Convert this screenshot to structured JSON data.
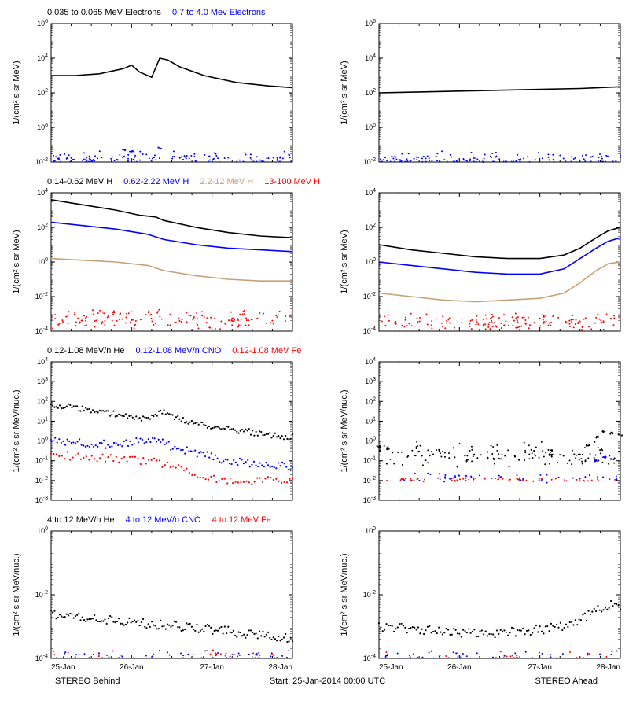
{
  "footer": {
    "left": "STEREO Behind",
    "center": "Start: 25-Jan-2014 00:00 UTC",
    "right": "STEREO Ahead"
  },
  "xaxis": {
    "ticks": [
      "25-Jan",
      "26-Jan",
      "27-Jan",
      "28-Jan"
    ],
    "domain": [
      0,
      3
    ]
  },
  "colors": {
    "black": "#000000",
    "blue": "#0000ff",
    "tan": "#c8a078",
    "red": "#ff0000",
    "axis": "#000000",
    "bg": "#ffffff"
  },
  "font": {
    "axis_label": 11,
    "tick": 9,
    "legend": 11
  },
  "rows": [
    {
      "legend": [
        {
          "text": "0.035 to 0.065 MeV Electrons",
          "color": "black"
        },
        {
          "text": "0.7 to 4.0 Mev Electrons",
          "color": "blue"
        }
      ],
      "ylabel": "1/(cm² s sr MeV)",
      "yexp": [
        -2,
        0,
        2,
        4,
        6
      ],
      "left": {
        "series": [
          {
            "color": "black",
            "kind": "line",
            "data": [
              [
                0,
                3.0
              ],
              [
                0.3,
                3.0
              ],
              [
                0.6,
                3.1
              ],
              [
                0.9,
                3.4
              ],
              [
                1.0,
                3.6
              ],
              [
                1.1,
                3.2
              ],
              [
                1.25,
                2.9
              ],
              [
                1.35,
                4.0
              ],
              [
                1.45,
                3.9
              ],
              [
                1.6,
                3.5
              ],
              [
                1.9,
                3.0
              ],
              [
                2.3,
                2.6
              ],
              [
                2.7,
                2.4
              ],
              [
                3.0,
                2.3
              ]
            ]
          },
          {
            "color": "blue",
            "kind": "scatter",
            "band": [
              -2.0,
              -1.6
            ],
            "jit": 0.25,
            "n": 130,
            "bumps": [
              [
                0.9,
                -1.3
              ],
              [
                1.0,
                -1.35
              ],
              [
                1.35,
                -1.2
              ]
            ]
          }
        ]
      },
      "right": {
        "series": [
          {
            "color": "black",
            "kind": "line",
            "data": [
              [
                0,
                2.0
              ],
              [
                0.5,
                2.05
              ],
              [
                1.0,
                2.1
              ],
              [
                1.5,
                2.15
              ],
              [
                2.0,
                2.2
              ],
              [
                2.5,
                2.25
              ],
              [
                3.0,
                2.35
              ]
            ]
          },
          {
            "color": "blue",
            "kind": "scatter",
            "band": [
              -2.0,
              -1.6
            ],
            "jit": 0.25,
            "n": 130
          }
        ]
      }
    },
    {
      "legend": [
        {
          "text": "0.14-0.62 MeV H",
          "color": "black"
        },
        {
          "text": "0.62-2.22 MeV H",
          "color": "blue"
        },
        {
          "text": "2.2-12 MeV H",
          "color": "tan"
        },
        {
          "text": "13-100 MeV H",
          "color": "red"
        }
      ],
      "ylabel": "1/(cm² s sr MeV)",
      "yexp": [
        -4,
        -2,
        0,
        2,
        4
      ],
      "left": {
        "series": [
          {
            "color": "black",
            "kind": "line",
            "data": [
              [
                0,
                3.6
              ],
              [
                0.4,
                3.3
              ],
              [
                0.8,
                3.0
              ],
              [
                1.1,
                2.7
              ],
              [
                1.3,
                2.6
              ],
              [
                1.4,
                2.4
              ],
              [
                1.8,
                2.0
              ],
              [
                2.2,
                1.7
              ],
              [
                2.6,
                1.5
              ],
              [
                3.0,
                1.4
              ]
            ]
          },
          {
            "color": "blue",
            "kind": "line",
            "data": [
              [
                0,
                2.3
              ],
              [
                0.4,
                2.1
              ],
              [
                0.8,
                1.9
              ],
              [
                1.2,
                1.6
              ],
              [
                1.4,
                1.3
              ],
              [
                1.8,
                1.0
              ],
              [
                2.2,
                0.8
              ],
              [
                2.6,
                0.7
              ],
              [
                3.0,
                0.6
              ]
            ]
          },
          {
            "color": "tan",
            "kind": "line",
            "data": [
              [
                0,
                0.2
              ],
              [
                0.4,
                0.1
              ],
              [
                0.8,
                0.0
              ],
              [
                1.2,
                -0.2
              ],
              [
                1.4,
                -0.5
              ],
              [
                1.8,
                -0.8
              ],
              [
                2.2,
                -1.0
              ],
              [
                2.6,
                -1.1
              ],
              [
                3.0,
                -1.1
              ]
            ]
          },
          {
            "color": "red",
            "kind": "scatter",
            "band": [
              -3.6,
              -3.0
            ],
            "jit": 0.3,
            "n": 160
          }
        ]
      },
      "right": {
        "series": [
          {
            "color": "black",
            "kind": "line",
            "data": [
              [
                0,
                1.0
              ],
              [
                0.4,
                0.7
              ],
              [
                0.8,
                0.5
              ],
              [
                1.2,
                0.3
              ],
              [
                1.6,
                0.2
              ],
              [
                2.0,
                0.2
              ],
              [
                2.3,
                0.4
              ],
              [
                2.5,
                0.8
              ],
              [
                2.7,
                1.4
              ],
              [
                2.85,
                1.8
              ],
              [
                3.0,
                2.0
              ]
            ]
          },
          {
            "color": "blue",
            "kind": "line",
            "data": [
              [
                0,
                0.0
              ],
              [
                0.4,
                -0.2
              ],
              [
                0.8,
                -0.4
              ],
              [
                1.2,
                -0.6
              ],
              [
                1.6,
                -0.7
              ],
              [
                2.0,
                -0.7
              ],
              [
                2.3,
                -0.4
              ],
              [
                2.5,
                0.2
              ],
              [
                2.7,
                0.8
              ],
              [
                2.85,
                1.2
              ],
              [
                3.0,
                1.4
              ]
            ]
          },
          {
            "color": "tan",
            "kind": "line",
            "data": [
              [
                0,
                -1.8
              ],
              [
                0.4,
                -2.0
              ],
              [
                0.8,
                -2.2
              ],
              [
                1.2,
                -2.3
              ],
              [
                1.6,
                -2.2
              ],
              [
                2.0,
                -2.1
              ],
              [
                2.3,
                -1.8
              ],
              [
                2.5,
                -1.2
              ],
              [
                2.7,
                -0.5
              ],
              [
                2.85,
                -0.1
              ],
              [
                3.0,
                0.0
              ]
            ]
          },
          {
            "color": "red",
            "kind": "scatter",
            "band": [
              -3.7,
              -3.2
            ],
            "jit": 0.3,
            "n": 160
          }
        ]
      }
    },
    {
      "legend": [
        {
          "text": "0.12-1.08 MeV/n He",
          "color": "black"
        },
        {
          "text": "0.12-1.08 MeV/n CNO",
          "color": "blue"
        },
        {
          "text": "0.12-1.08 MeV Fe",
          "color": "red"
        }
      ],
      "ylabel": "1/(cm² s sr MeV/nuc.)",
      "yexp": [
        -3,
        -2,
        -1,
        0,
        1,
        2,
        3,
        4
      ],
      "left": {
        "series": [
          {
            "color": "black",
            "kind": "scatterline",
            "data": [
              [
                0,
                1.8
              ],
              [
                0.3,
                1.7
              ],
              [
                0.6,
                1.5
              ],
              [
                0.9,
                1.3
              ],
              [
                1.1,
                1.1
              ],
              [
                1.3,
                1.3
              ],
              [
                1.35,
                1.6
              ],
              [
                1.5,
                1.2
              ],
              [
                1.8,
                0.9
              ],
              [
                2.1,
                0.7
              ],
              [
                2.4,
                0.5
              ],
              [
                2.7,
                0.3
              ],
              [
                3.0,
                0.2
              ]
            ],
            "jit": 0.15,
            "n": 140
          },
          {
            "color": "blue",
            "kind": "scatterline",
            "data": [
              [
                0,
                0.0
              ],
              [
                0.4,
                -0.1
              ],
              [
                0.8,
                -0.2
              ],
              [
                1.1,
                0.0
              ],
              [
                1.3,
                0.1
              ],
              [
                1.5,
                -0.3
              ],
              [
                1.8,
                -0.6
              ],
              [
                2.1,
                -0.9
              ],
              [
                2.4,
                -1.1
              ],
              [
                2.7,
                -1.2
              ],
              [
                3.0,
                -1.3
              ]
            ],
            "jit": 0.2,
            "n": 120
          },
          {
            "color": "red",
            "kind": "scatterline",
            "data": [
              [
                0,
                -0.7
              ],
              [
                0.4,
                -0.8
              ],
              [
                0.8,
                -0.9
              ],
              [
                1.2,
                -1.0
              ],
              [
                1.5,
                -1.3
              ],
              [
                1.8,
                -1.7
              ],
              [
                2.1,
                -2.0
              ],
              [
                2.4,
                -2.0
              ],
              [
                2.7,
                -2.0
              ],
              [
                3.0,
                -2.0
              ]
            ],
            "jit": 0.2,
            "n": 90
          }
        ]
      },
      "right": {
        "series": [
          {
            "color": "black",
            "kind": "scatter",
            "band": [
              -1.0,
              -0.3
            ],
            "jit": 0.35,
            "n": 160,
            "bumps": [
              [
                0.0,
                -0.3
              ],
              [
                0.1,
                -0.4
              ],
              [
                2.6,
                -0.2
              ],
              [
                2.7,
                0.2
              ],
              [
                2.8,
                0.5
              ],
              [
                2.9,
                0.4
              ],
              [
                3.0,
                0.3
              ]
            ]
          },
          {
            "color": "blue",
            "kind": "scatter",
            "band": [
              -2.0,
              -1.7
            ],
            "jit": 0.15,
            "n": 50,
            "bumps": [
              [
                2.7,
                -1.0
              ],
              [
                2.8,
                -0.8
              ],
              [
                2.9,
                -0.9
              ]
            ]
          },
          {
            "color": "red",
            "kind": "scatter",
            "band": [
              -2.0,
              -1.9
            ],
            "jit": 0.05,
            "n": 60
          }
        ]
      }
    },
    {
      "legend": [
        {
          "text": "4 to 12 MeV/n He",
          "color": "black"
        },
        {
          "text": "4 to 12 MeV/n CNO",
          "color": "blue"
        },
        {
          "text": "4 to 12 MeV Fe",
          "color": "red"
        }
      ],
      "ylabel": "1/(cm² s sr MeV/nuc.)",
      "yexp": [
        -4,
        -2,
        0
      ],
      "left": {
        "series": [
          {
            "color": "black",
            "kind": "scatterline",
            "data": [
              [
                0,
                -2.6
              ],
              [
                0.4,
                -2.7
              ],
              [
                0.8,
                -2.8
              ],
              [
                1.2,
                -2.9
              ],
              [
                1.6,
                -3.0
              ],
              [
                2.0,
                -3.1
              ],
              [
                2.4,
                -3.2
              ],
              [
                2.8,
                -3.3
              ],
              [
                3.0,
                -3.4
              ]
            ],
            "jit": 0.15,
            "n": 140
          },
          {
            "color": "blue",
            "kind": "scatter",
            "band": [
              -4.0,
              -3.8
            ],
            "jit": 0.1,
            "n": 50
          },
          {
            "color": "red",
            "kind": "scatter",
            "band": [
              -4.0,
              -3.8
            ],
            "jit": 0.1,
            "n": 30
          }
        ]
      },
      "right": {
        "series": [
          {
            "color": "black",
            "kind": "scatterline",
            "data": [
              [
                0,
                -3.0
              ],
              [
                0.5,
                -3.1
              ],
              [
                1.0,
                -3.2
              ],
              [
                1.5,
                -3.2
              ],
              [
                2.0,
                -3.1
              ],
              [
                2.3,
                -3.0
              ],
              [
                2.5,
                -2.8
              ],
              [
                2.7,
                -2.5
              ],
              [
                2.85,
                -2.3
              ],
              [
                3.0,
                -2.4
              ]
            ],
            "jit": 0.15,
            "n": 130
          },
          {
            "color": "blue",
            "kind": "scatter",
            "band": [
              -4.0,
              -3.8
            ],
            "jit": 0.1,
            "n": 40
          },
          {
            "color": "red",
            "kind": "scatter",
            "band": [
              -4.0,
              -3.8
            ],
            "jit": 0.1,
            "n": 20
          }
        ]
      }
    }
  ]
}
